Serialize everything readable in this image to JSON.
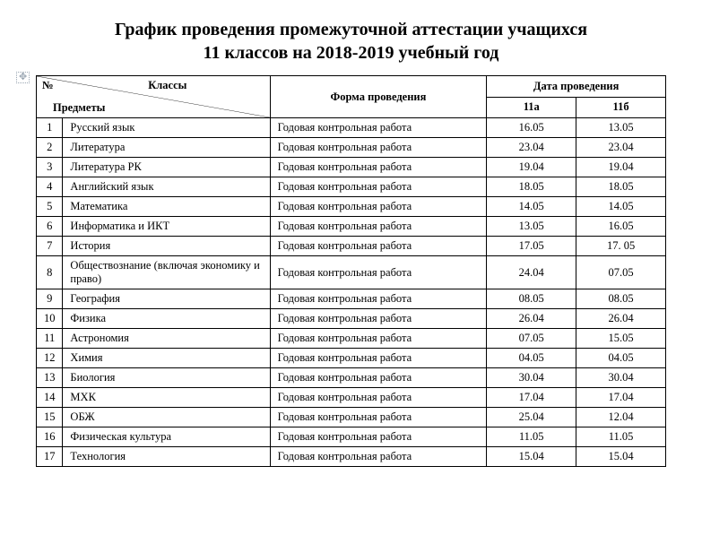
{
  "title_line1": "График проведения промежуточной аттестации учащихся",
  "title_line2": "11 классов на 2018-2019 учебный год",
  "header": {
    "num": "№",
    "classes": "Классы",
    "subjects": "Предметы",
    "form": "Форма проведения",
    "date": "Дата проведения",
    "class_a": "11а",
    "class_b": "11б"
  },
  "table": {
    "border_color": "#000000",
    "background": "#ffffff",
    "font_size": 12.5,
    "columns": [
      "№",
      "Предметы",
      "Форма проведения",
      "11а",
      "11б"
    ],
    "rows": [
      {
        "n": "1",
        "subj": "Русский язык",
        "form": "Годовая контрольная  работа",
        "a": "16.05",
        "b": "13.05"
      },
      {
        "n": "2",
        "subj": "Литература",
        "form": "Годовая контрольная  работа",
        "a": "23.04",
        "b": "23.04"
      },
      {
        "n": "3",
        "subj": "Литература РК",
        "form": "Годовая контрольная  работа",
        "a": "19.04",
        "b": "19.04"
      },
      {
        "n": "4",
        "subj": "Английский язык",
        "form": "Годовая контрольная  работа",
        "a": "18.05",
        "b": "18.05"
      },
      {
        "n": "5",
        "subj": "Математика",
        "form": "Годовая контрольная  работа",
        "a": "14.05",
        "b": "14.05"
      },
      {
        "n": "6",
        "subj": "Информатика и ИКТ",
        "form": "Годовая контрольная  работа",
        "a": "13.05",
        "b": "16.05"
      },
      {
        "n": "7",
        "subj": "История",
        "form": "Годовая контрольная  работа",
        "a": "17.05",
        "b": "17. 05"
      },
      {
        "n": "8",
        "subj": "Обществознание (включая экономику и право)",
        "form": "Годовая контрольная  работа",
        "a": "24.04",
        "b": "07.05"
      },
      {
        "n": "9",
        "subj": "География",
        "form": "Годовая контрольная  работа",
        "a": "08.05",
        "b": "08.05"
      },
      {
        "n": "10",
        "subj": "Физика",
        "form": "Годовая контрольная  работа",
        "a": "26.04",
        "b": "26.04"
      },
      {
        "n": "11",
        "subj": "Астрономия",
        "form": "Годовая контрольная  работа",
        "a": "07.05",
        "b": "15.05"
      },
      {
        "n": "12",
        "subj": "Химия",
        "form": "Годовая контрольная  работа",
        "a": "04.05",
        "b": "04.05"
      },
      {
        "n": "13",
        "subj": "Биология",
        "form": "Годовая контрольная  работа",
        "a": "30.04",
        "b": "30.04"
      },
      {
        "n": "14",
        "subj": "МХК",
        "form": "Годовая контрольная  работа",
        "a": "17.04",
        "b": "17.04"
      },
      {
        "n": "15",
        "subj": "ОБЖ",
        "form": "Годовая контрольная  работа",
        "a": "25.04",
        "b": "12.04"
      },
      {
        "n": "16",
        "subj": "Физическая культура",
        "form": "Годовая контрольная  работа",
        "a": "11.05",
        "b": "11.05"
      },
      {
        "n": "17",
        "subj": "Технология",
        "form": "Годовая контрольная  работа",
        "a": "15.04",
        "b": "15.04"
      }
    ]
  }
}
